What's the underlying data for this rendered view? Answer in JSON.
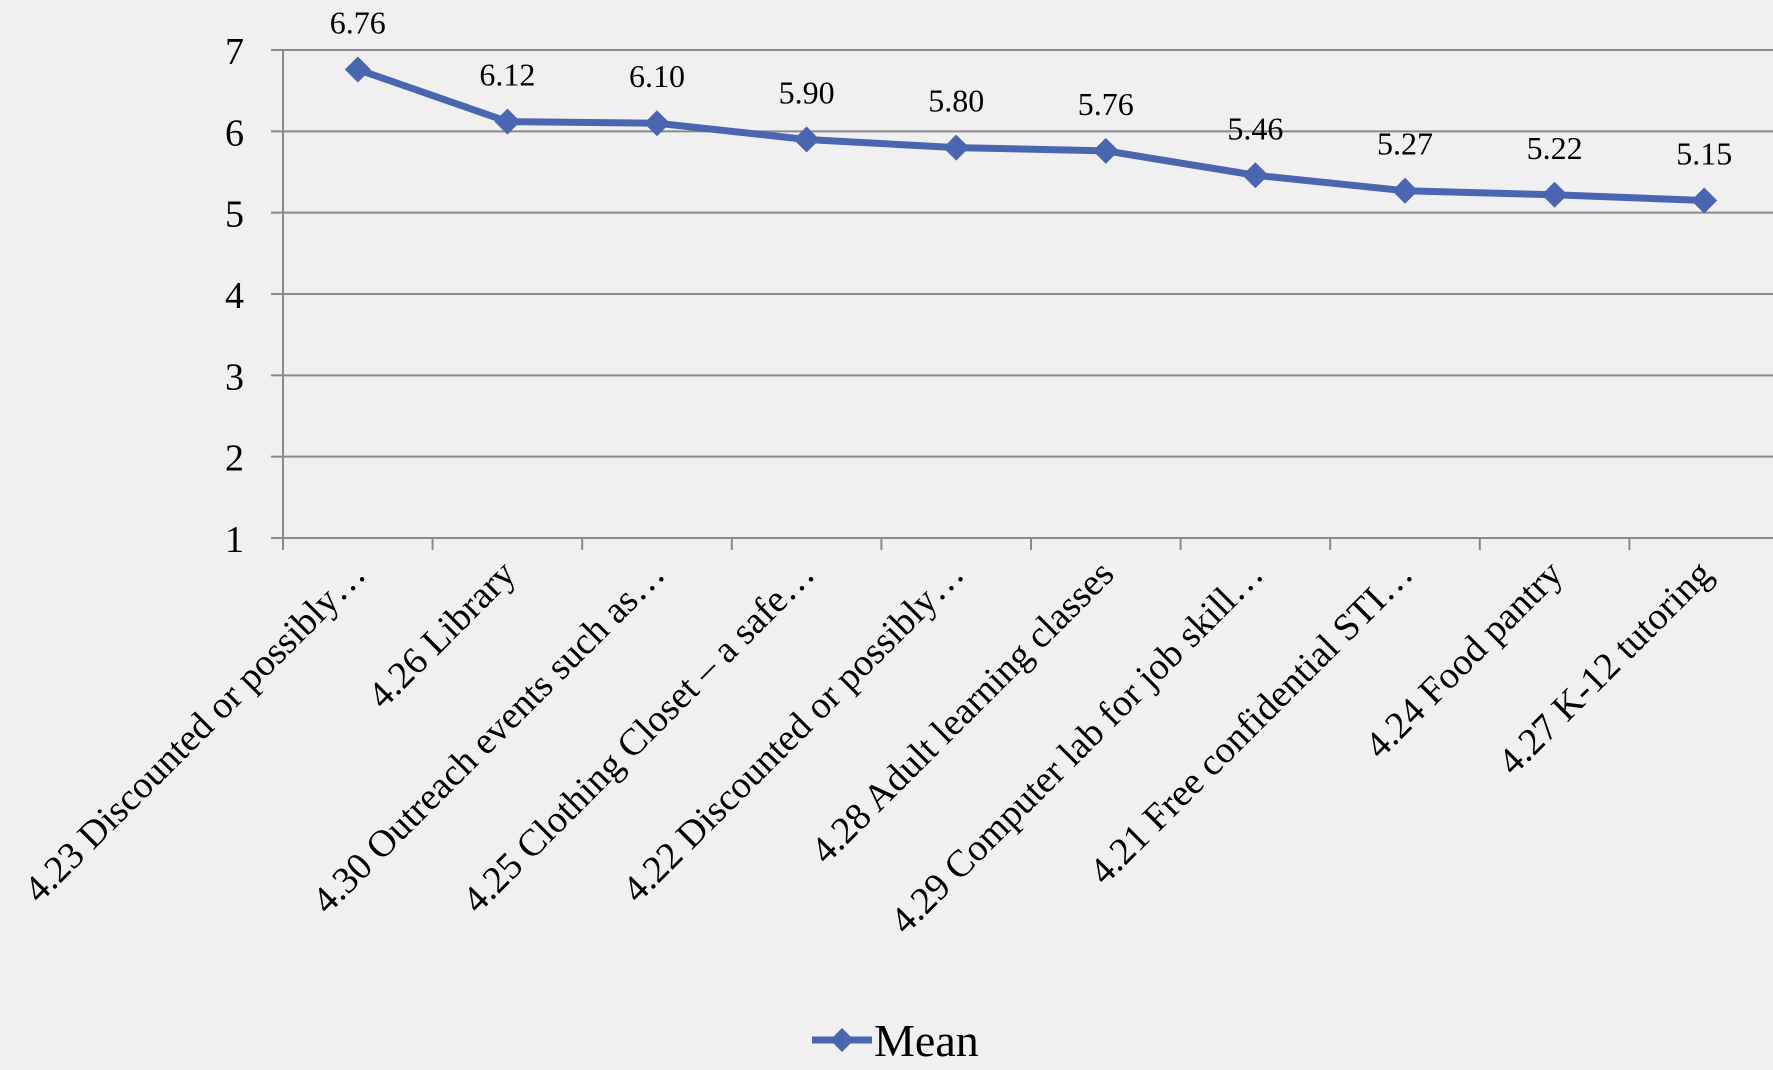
{
  "chart_data": {
    "type": "line",
    "title": "",
    "xlabel": "",
    "ylabel": "",
    "ylim": [
      1,
      7
    ],
    "yticks": [
      1,
      2,
      3,
      4,
      5,
      6,
      7
    ],
    "grid": true,
    "legend_position": "bottom",
    "categories": [
      "4.23 Discounted or possibly…",
      "4.26 Library",
      "4.30 Outreach events such as…",
      "4.25 Clothing Closet – a safe…",
      "4.22 Discounted or possibly…",
      "4.28 Adult learning classes",
      "4.29 Computer lab for job skill…",
      "4.21 Free confidential STI…",
      "4.24 Food pantry",
      "4.27 K-12 tutoring"
    ],
    "series": [
      {
        "name": "Mean",
        "values": [
          6.76,
          6.12,
          6.1,
          5.9,
          5.8,
          5.76,
          5.46,
          5.27,
          5.22,
          5.15
        ],
        "labels": [
          "6.76",
          "6.12",
          "6.10",
          "5.90",
          "5.80",
          "5.76",
          "5.46",
          "5.27",
          "5.22",
          "5.15"
        ],
        "color": "#4a66b0"
      }
    ],
    "colors": {
      "grid": "#8a8a8a",
      "axis": "#8a8a8a",
      "background": "#f0f0f0"
    }
  }
}
